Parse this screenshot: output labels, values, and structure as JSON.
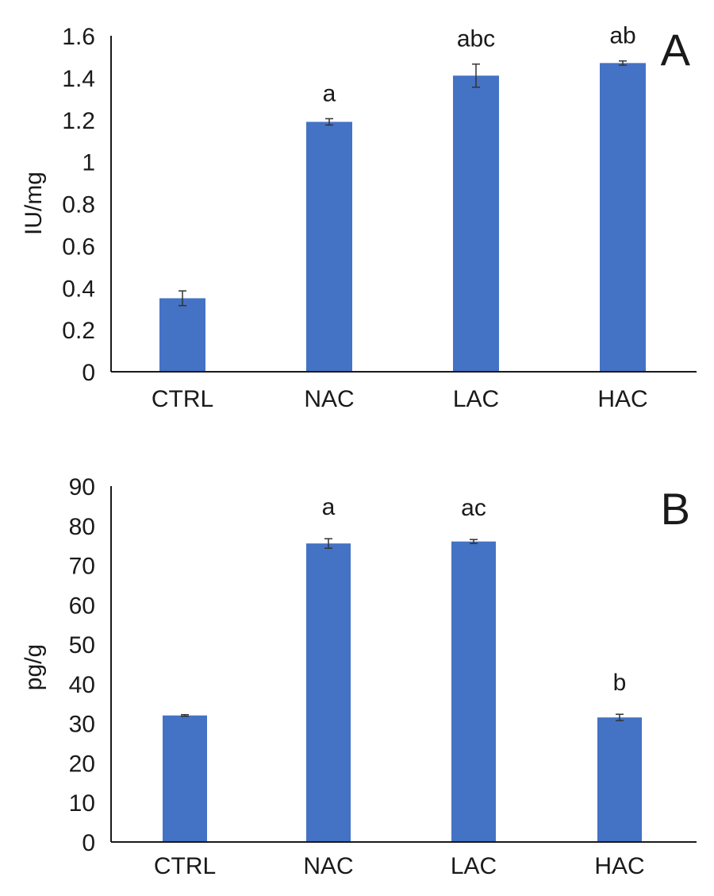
{
  "colors": {
    "bar": "#4472C4",
    "axis": "#1a1a1a",
    "errorbar": "#333333"
  },
  "chart_data": [
    {
      "type": "bar",
      "panel_label": "A",
      "ylabel": "IU/mg",
      "categories": [
        "CTRL",
        "NAC",
        "LAC",
        "HAC"
      ],
      "values": [
        0.35,
        1.19,
        1.41,
        1.47
      ],
      "errors": [
        0.035,
        0.015,
        0.055,
        0.01
      ],
      "annotations": [
        "",
        "a",
        "abc",
        "ab"
      ],
      "ylim": [
        0,
        1.6
      ],
      "yticks": [
        0,
        0.2,
        0.4,
        0.6,
        0.8,
        1,
        1.2,
        1.4,
        1.6
      ],
      "ytick_labels": [
        "0",
        "0.2",
        "0.4",
        "0.6",
        "0.8",
        "1",
        "1.2",
        "1.4",
        "1.6"
      ],
      "grid": false,
      "legend": "none"
    },
    {
      "type": "bar",
      "panel_label": "B",
      "ylabel": "pg/g",
      "categories": [
        "CTRL",
        "NAC",
        "LAC",
        "HAC"
      ],
      "values": [
        32,
        75.5,
        76,
        31.5
      ],
      "errors": [
        0.2,
        1.2,
        0.5,
        0.8
      ],
      "annotations": [
        "",
        "a",
        "ac",
        "b"
      ],
      "ylim": [
        0,
        90
      ],
      "yticks": [
        0,
        10,
        20,
        30,
        40,
        50,
        60,
        70,
        80,
        90
      ],
      "ytick_labels": [
        "0",
        "10",
        "20",
        "30",
        "40",
        "50",
        "60",
        "70",
        "80",
        "90"
      ],
      "grid": false,
      "legend": "none"
    }
  ]
}
